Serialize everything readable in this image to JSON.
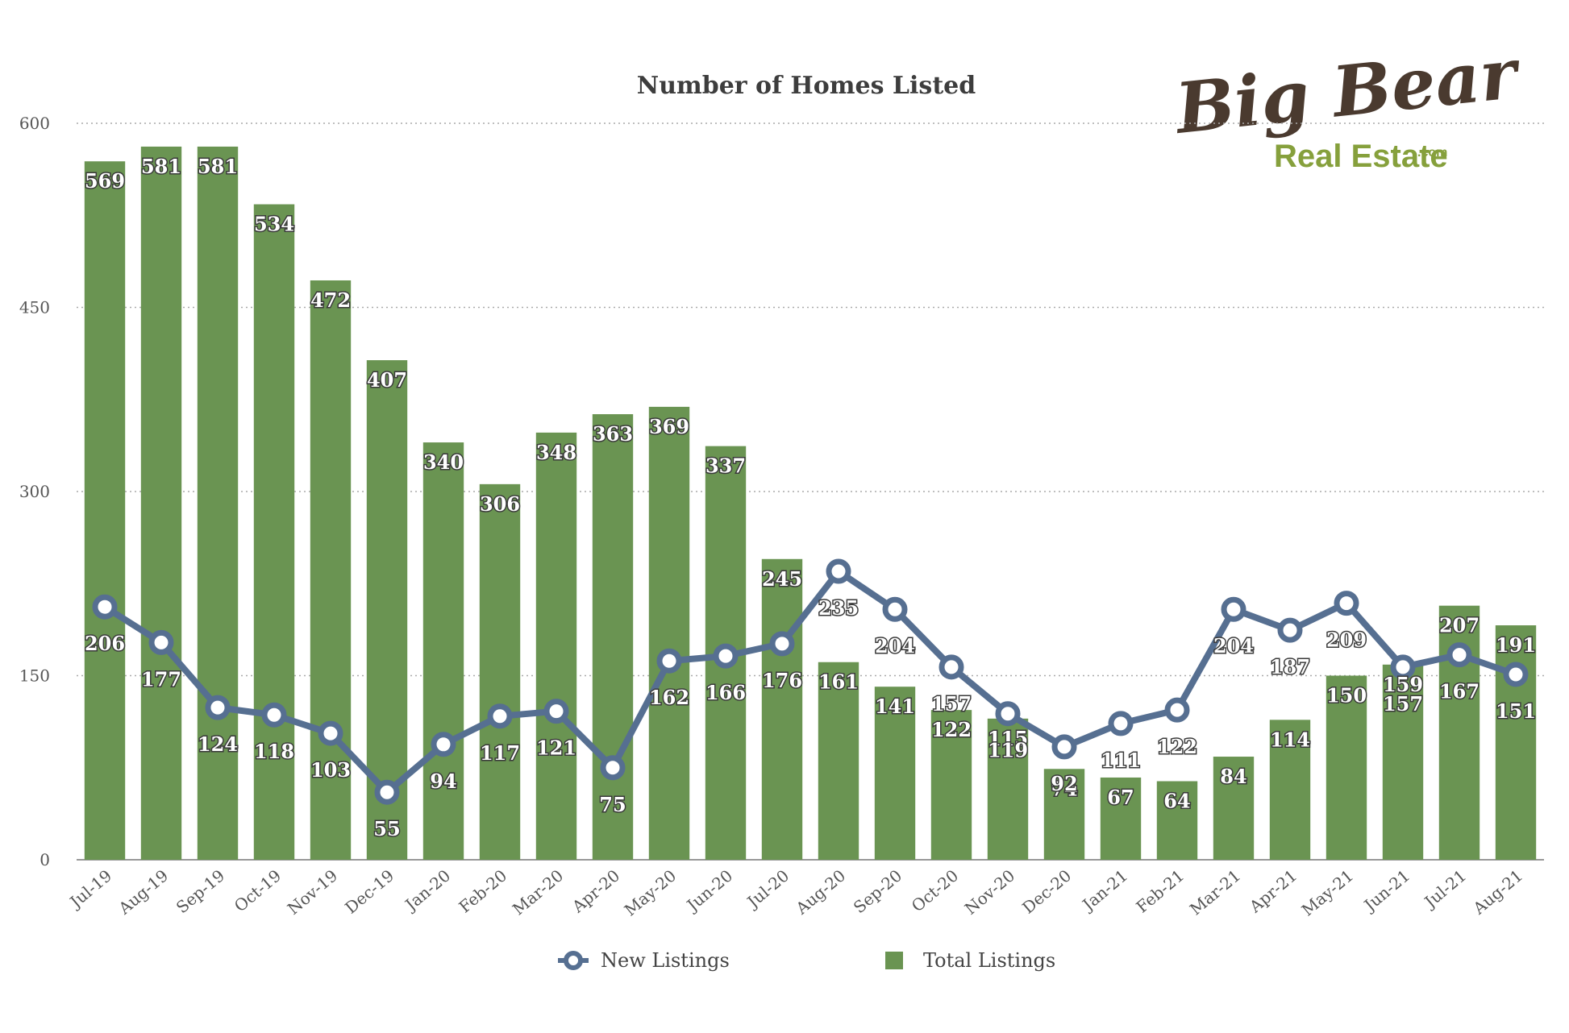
{
  "logo": {
    "line1": "Big Bear",
    "line2": "Real Estate",
    "suffix": ".com",
    "colors": {
      "dark": "#4a3a2f",
      "green": "#86a03c"
    }
  },
  "chart_data": {
    "type": "bar",
    "title": "Number of Homes Listed",
    "xlabel": "",
    "ylabel": "",
    "ylim": [
      0,
      600
    ],
    "yticks": [
      0,
      150,
      300,
      450,
      600
    ],
    "grid": true,
    "legend_position": "bottom",
    "categories": [
      "Jul-19",
      "Aug-19",
      "Sep-19",
      "Oct-19",
      "Nov-19",
      "Dec-19",
      "Jan-20",
      "Feb-20",
      "Mar-20",
      "Apr-20",
      "May-20",
      "Jun-20",
      "Jul-20",
      "Aug-20",
      "Sep-20",
      "Oct-20",
      "Nov-20",
      "Dec-20",
      "Jan-21",
      "Feb-21",
      "Mar-21",
      "Apr-21",
      "May-21",
      "Jun-21",
      "Jul-21",
      "Aug-21"
    ],
    "series": [
      {
        "name": "New Listings",
        "type": "line",
        "color": "#566f91",
        "values": [
          206,
          177,
          124,
          118,
          103,
          55,
          94,
          117,
          121,
          75,
          162,
          166,
          176,
          235,
          204,
          157,
          119,
          92,
          111,
          122,
          204,
          187,
          209,
          157,
          167,
          151
        ]
      },
      {
        "name": "Total Listings",
        "type": "bar",
        "color": "#6a9452",
        "values": [
          569,
          581,
          581,
          534,
          472,
          407,
          340,
          306,
          348,
          363,
          369,
          337,
          245,
          161,
          141,
          122,
          115,
          74,
          67,
          64,
          84,
          114,
          150,
          159,
          207,
          191
        ]
      }
    ]
  }
}
